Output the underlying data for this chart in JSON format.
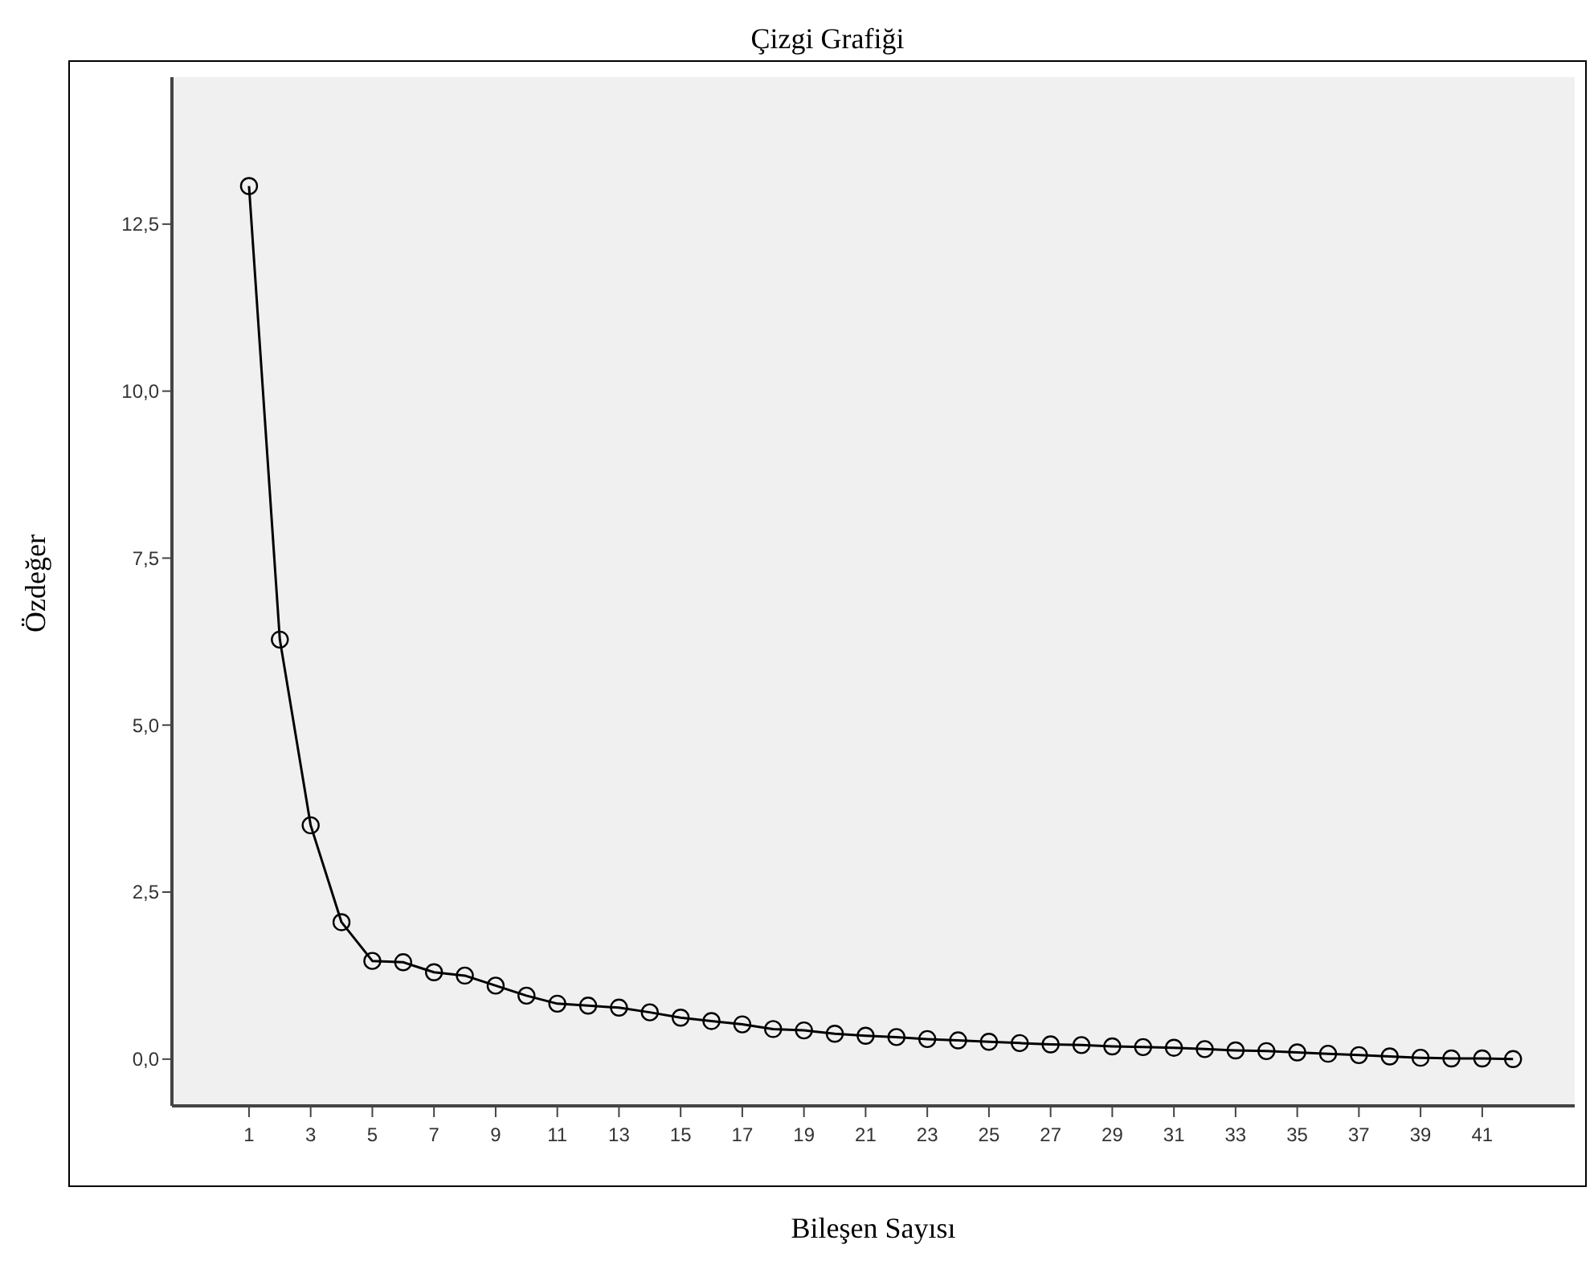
{
  "chart_data": {
    "type": "line",
    "title": "Çizgi Grafiği",
    "xlabel": "Bileşen Sayısı",
    "ylabel": "Özdeğer",
    "x": [
      1,
      2,
      3,
      4,
      5,
      6,
      7,
      8,
      9,
      10,
      11,
      12,
      13,
      14,
      15,
      16,
      17,
      18,
      19,
      20,
      21,
      22,
      23,
      24,
      25,
      26,
      27,
      28,
      29,
      30,
      31,
      32,
      33,
      34,
      35,
      36,
      37,
      38,
      39,
      40,
      41,
      42
    ],
    "series": [
      {
        "color": "#000000",
        "values": [
          13.07,
          6.28,
          3.5,
          2.05,
          1.47,
          1.45,
          1.3,
          1.25,
          1.1,
          0.95,
          0.83,
          0.8,
          0.77,
          0.7,
          0.62,
          0.57,
          0.52,
          0.45,
          0.43,
          0.38,
          0.35,
          0.33,
          0.3,
          0.28,
          0.26,
          0.24,
          0.22,
          0.21,
          0.19,
          0.18,
          0.17,
          0.15,
          0.13,
          0.12,
          0.1,
          0.08,
          0.06,
          0.04,
          0.02,
          0.01,
          0.01,
          0
        ]
      }
    ],
    "xlim": [
      -1.5,
      44
    ],
    "xticks": [
      1,
      3,
      5,
      7,
      9,
      11,
      13,
      15,
      17,
      19,
      21,
      23,
      25,
      27,
      29,
      31,
      33,
      35,
      37,
      39,
      41
    ],
    "ylim": [
      -0.7,
      14.7
    ],
    "yticks": [
      {
        "value": 0,
        "label": "0,0"
      },
      {
        "value": 2.5,
        "label": "2,5"
      },
      {
        "value": 5,
        "label": "5,0"
      },
      {
        "value": 7.5,
        "label": "7,5"
      },
      {
        "value": 10,
        "label": "10,0"
      },
      {
        "value": 12.5,
        "label": "12,5"
      }
    ],
    "marker": "circle",
    "line_style": "solid",
    "grid": false
  }
}
